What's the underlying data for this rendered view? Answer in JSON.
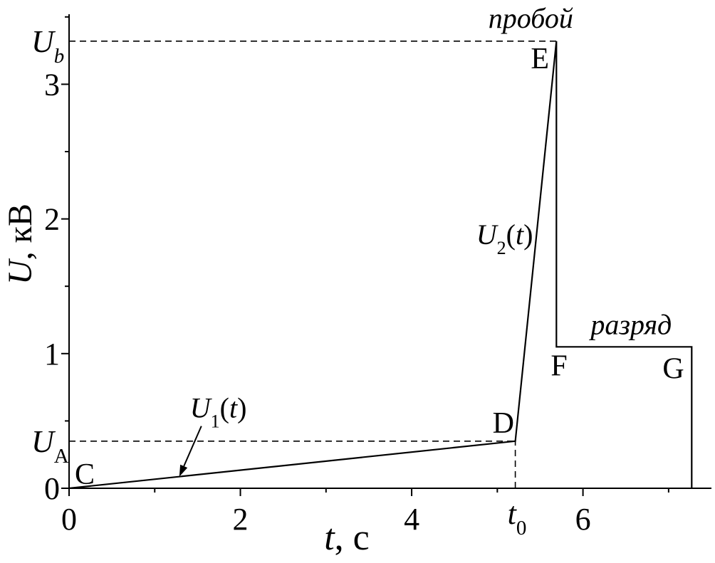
{
  "chart_data": {
    "type": "line",
    "xlabel": [
      {
        "text": "t",
        "italic": true
      },
      {
        "text": ", "
      },
      {
        "text": "с"
      }
    ],
    "ylabel": [
      {
        "text": "U",
        "italic": true
      },
      {
        "text": ", "
      },
      {
        "text": "кВ"
      }
    ],
    "xlim": [
      0,
      7.5
    ],
    "ylim": [
      0,
      3.52
    ],
    "x_ticks": [
      0,
      2,
      4,
      6
    ],
    "x_minor_ticks": [
      1,
      3,
      5,
      7
    ],
    "y_ticks": [
      0,
      1,
      2,
      3
    ],
    "y_minor_ticks": [
      0.5,
      1.5,
      2.5,
      3.5
    ],
    "grid": false,
    "series": [
      {
        "x": [
          0,
          5.21,
          5.69,
          5.69,
          7.27,
          7.27
        ],
        "y": [
          0,
          0.35,
          3.32,
          1.05,
          1.05,
          0
        ],
        "point_labels": [
          "C",
          "D",
          "E",
          "F",
          "G",
          ""
        ]
      }
    ],
    "horizontal_lines": [
      {
        "y": 3.32,
        "x_from": 0,
        "x_to": 5.69,
        "dashed": true,
        "label": [
          {
            "text": "U",
            "italic": true
          },
          {
            "text": "b",
            "italic": true,
            "sub": true
          }
        ]
      },
      {
        "y": 0.35,
        "x_from": 0,
        "x_to": 5.21,
        "dashed": true,
        "label": [
          {
            "text": "U",
            "italic": true
          },
          {
            "text": "A",
            "sub": true
          }
        ]
      }
    ],
    "vertical_lines": [
      {
        "x": 5.21,
        "y_from": 0,
        "y_to": 0.35,
        "dashed": true,
        "label": [
          {
            "text": "t",
            "italic": true
          },
          {
            "text": "0",
            "sub": true
          }
        ]
      }
    ],
    "curve_labels": [
      {
        "from_point": 0,
        "to_point": 1,
        "arrow": true,
        "label": [
          {
            "text": "U",
            "italic": true
          },
          {
            "text": "1",
            "sub": true
          },
          {
            "text": "("
          },
          {
            "text": "t",
            "italic": true
          },
          {
            "text": ")"
          }
        ]
      },
      {
        "from_point": 1,
        "to_point": 2,
        "arrow": false,
        "label": [
          {
            "text": "U",
            "italic": true
          },
          {
            "text": "2",
            "sub": true
          },
          {
            "text": "("
          },
          {
            "text": "t",
            "italic": true
          },
          {
            "text": ")"
          }
        ]
      }
    ],
    "phase_labels": [
      {
        "text": "пробой",
        "points": [
          2
        ]
      },
      {
        "text": "разряд",
        "points": [
          3,
          4
        ]
      }
    ]
  },
  "colors": {
    "line": "#000000",
    "axis": "#000000",
    "background": "#ffffff"
  }
}
